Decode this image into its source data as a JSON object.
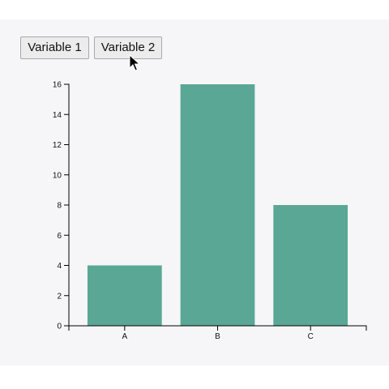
{
  "controls": {
    "variable_1_label": "Variable 1",
    "variable_2_label": "Variable 2",
    "active": "Variable 2"
  },
  "colors": {
    "bar": "#5aa795",
    "background": "#f6f6f8",
    "axis": "#000000"
  },
  "chart_data": {
    "type": "bar",
    "categories": [
      "A",
      "B",
      "C"
    ],
    "values": [
      4,
      16,
      8
    ],
    "title": "",
    "xlabel": "",
    "ylabel": "",
    "ylim": [
      0,
      16
    ],
    "yticks": [
      0,
      2,
      4,
      6,
      8,
      10,
      12,
      14,
      16
    ],
    "grid": false
  }
}
